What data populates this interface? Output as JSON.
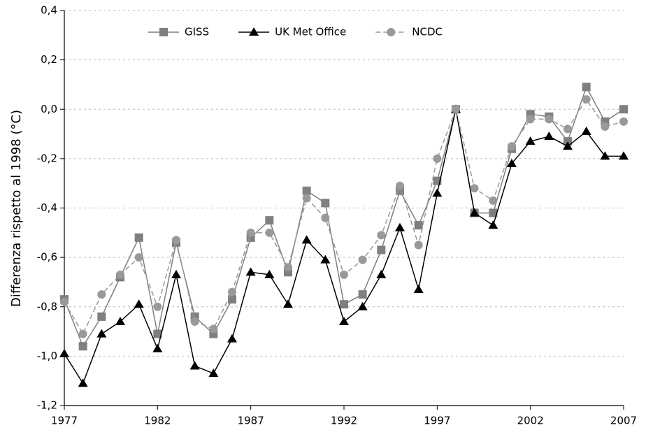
{
  "chart_data": {
    "type": "line",
    "y_label": "Differenza rispetto al 1998 (°C)",
    "x": [
      1977,
      1978,
      1979,
      1980,
      1981,
      1982,
      1983,
      1984,
      1985,
      1986,
      1987,
      1988,
      1989,
      1990,
      1991,
      1992,
      1993,
      1994,
      1995,
      1996,
      1997,
      1998,
      1999,
      2000,
      2001,
      2002,
      2003,
      2004,
      2005,
      2006,
      2007
    ],
    "series": [
      {
        "name": "GISS",
        "color": "#7f7f7f",
        "marker": "square",
        "dash": false,
        "values": [
          -0.77,
          -0.96,
          -0.84,
          -0.68,
          -0.52,
          -0.91,
          -0.54,
          -0.84,
          -0.91,
          -0.77,
          -0.52,
          -0.45,
          -0.66,
          -0.33,
          -0.38,
          -0.79,
          -0.75,
          -0.57,
          -0.33,
          -0.47,
          -0.29,
          0.0,
          -0.42,
          -0.42,
          -0.16,
          -0.02,
          -0.03,
          -0.13,
          0.09,
          -0.05,
          0.0
        ]
      },
      {
        "name": "UK Met Office",
        "color": "#000000",
        "marker": "triangle",
        "dash": false,
        "values": [
          -0.99,
          -1.11,
          -0.91,
          -0.86,
          -0.79,
          -0.97,
          -0.67,
          -1.04,
          -1.07,
          -0.93,
          -0.66,
          -0.67,
          -0.79,
          -0.53,
          -0.61,
          -0.86,
          -0.8,
          -0.67,
          -0.48,
          -0.73,
          -0.34,
          0.0,
          -0.42,
          -0.47,
          -0.22,
          -0.13,
          -0.11,
          -0.15,
          -0.09,
          -0.19,
          -0.19
        ]
      },
      {
        "name": "NCDC",
        "color": "#999999",
        "marker": "circle",
        "dash": true,
        "values": [
          -0.78,
          -0.91,
          -0.75,
          -0.67,
          -0.6,
          -0.8,
          -0.53,
          -0.86,
          -0.89,
          -0.74,
          -0.5,
          -0.5,
          -0.64,
          -0.36,
          -0.44,
          -0.67,
          -0.61,
          -0.51,
          -0.31,
          -0.55,
          -0.2,
          0.0,
          -0.32,
          -0.37,
          -0.15,
          -0.04,
          -0.04,
          -0.08,
          0.04,
          -0.07,
          -0.05
        ]
      }
    ],
    "xlim": [
      1977,
      2007
    ],
    "xticks": [
      1977,
      1982,
      1987,
      1992,
      1997,
      2002,
      2007
    ],
    "ylim": [
      -1.2,
      0.4
    ],
    "yticks": [
      {
        "value": -1.2,
        "label": "-1,2"
      },
      {
        "value": -1.0,
        "label": "-1,0"
      },
      {
        "value": -0.8,
        "label": "-0,8"
      },
      {
        "value": -0.6,
        "label": "-0,6"
      },
      {
        "value": -0.4,
        "label": "-0,4"
      },
      {
        "value": -0.2,
        "label": "-0,2"
      },
      {
        "value": 0.0,
        "label": "0,0"
      },
      {
        "value": 0.2,
        "label": "0,2"
      },
      {
        "value": 0.4,
        "label": "0,4"
      }
    ],
    "grid": true,
    "legend": "top"
  }
}
